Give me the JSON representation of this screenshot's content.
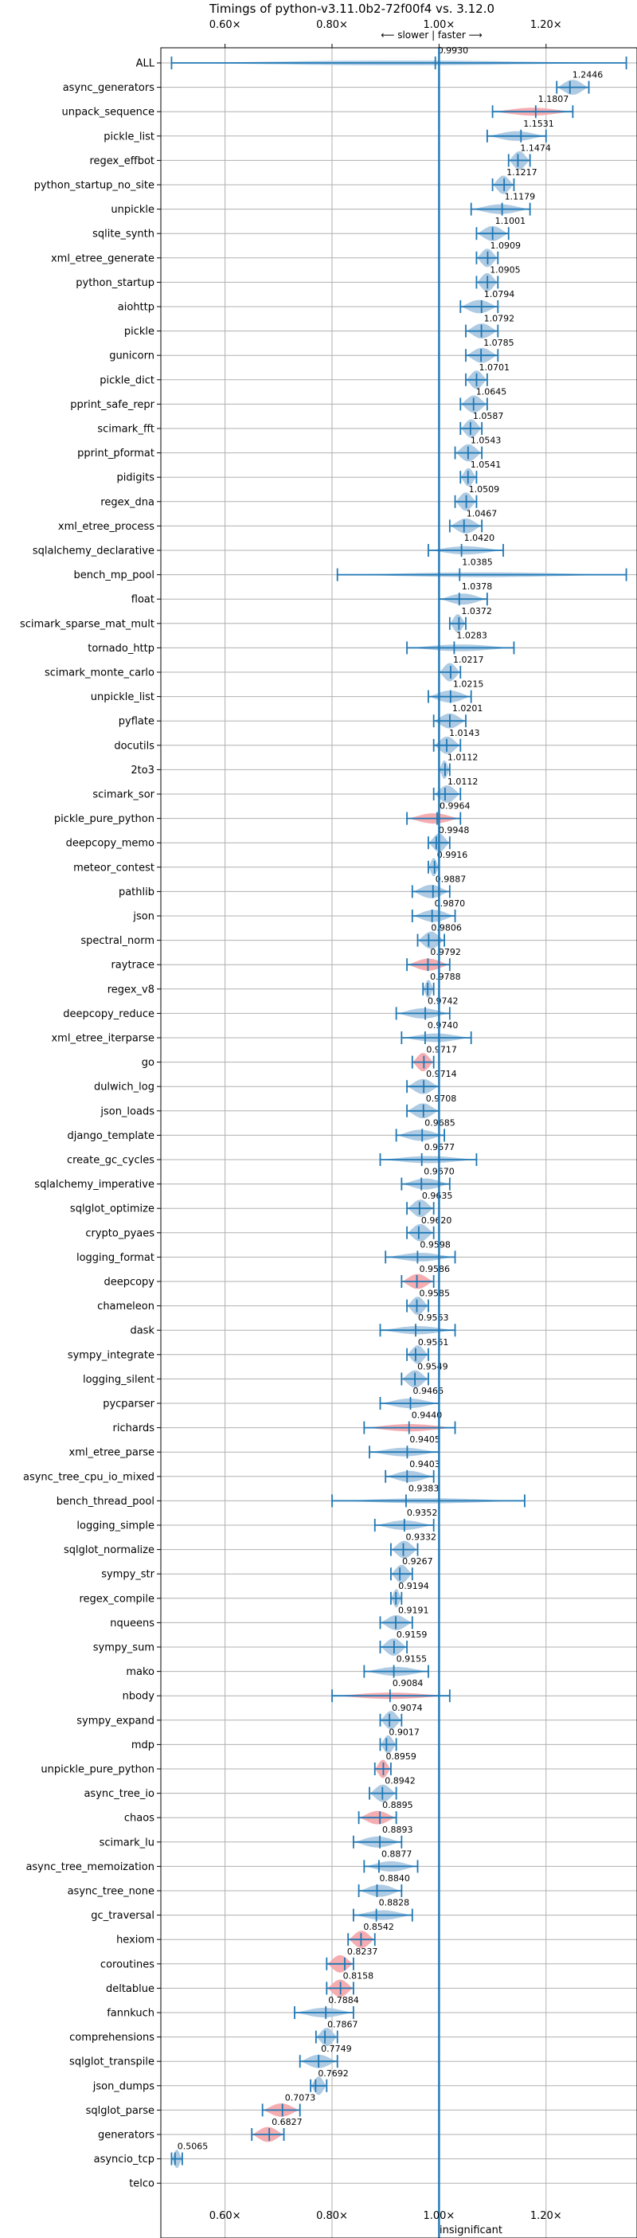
{
  "chart_data": {
    "type": "violin",
    "title": "Timings of python-v3.11.0b2-72f00f4 vs. 3.12.0",
    "direction_label": "⟵ slower | faster ⟶",
    "x_ticks": [
      0.6,
      0.8,
      1.0,
      1.2
    ],
    "x_tick_labels": [
      "0.60×",
      "0.80×",
      "1.00×",
      "1.20×"
    ],
    "xlim": [
      0.48,
      1.37
    ],
    "grid": true,
    "colors": {
      "normal": "#aac8e2",
      "regression": "#f4a9ad",
      "line": "#1f77b4"
    },
    "annotation": "insignificant",
    "benchmarks": [
      {
        "name": "ALL",
        "value": 0.993,
        "low": 0.5,
        "high": 1.35,
        "color": "normal"
      },
      {
        "name": "async_generators",
        "value": 1.2446,
        "low": 1.22,
        "high": 1.28,
        "color": "normal"
      },
      {
        "name": "unpack_sequence",
        "value": 1.1807,
        "low": 1.1,
        "high": 1.25,
        "color": "regression"
      },
      {
        "name": "pickle_list",
        "value": 1.1531,
        "low": 1.09,
        "high": 1.2,
        "color": "normal"
      },
      {
        "name": "regex_effbot",
        "value": 1.1474,
        "low": 1.13,
        "high": 1.17,
        "color": "normal"
      },
      {
        "name": "python_startup_no_site",
        "value": 1.1217,
        "low": 1.1,
        "high": 1.14,
        "color": "normal"
      },
      {
        "name": "unpickle",
        "value": 1.1179,
        "low": 1.06,
        "high": 1.17,
        "color": "normal"
      },
      {
        "name": "sqlite_synth",
        "value": 1.1001,
        "low": 1.07,
        "high": 1.13,
        "color": "normal"
      },
      {
        "name": "xml_etree_generate",
        "value": 1.0909,
        "low": 1.07,
        "high": 1.11,
        "color": "normal"
      },
      {
        "name": "python_startup",
        "value": 1.0905,
        "low": 1.07,
        "high": 1.11,
        "color": "normal"
      },
      {
        "name": "aiohttp",
        "value": 1.0794,
        "low": 1.04,
        "high": 1.11,
        "color": "normal"
      },
      {
        "name": "pickle",
        "value": 1.0792,
        "low": 1.05,
        "high": 1.11,
        "color": "normal"
      },
      {
        "name": "gunicorn",
        "value": 1.0785,
        "low": 1.05,
        "high": 1.11,
        "color": "normal"
      },
      {
        "name": "pickle_dict",
        "value": 1.0701,
        "low": 1.05,
        "high": 1.09,
        "color": "normal"
      },
      {
        "name": "pprint_safe_repr",
        "value": 1.0645,
        "low": 1.04,
        "high": 1.09,
        "color": "normal"
      },
      {
        "name": "scimark_fft",
        "value": 1.0587,
        "low": 1.04,
        "high": 1.08,
        "color": "normal"
      },
      {
        "name": "pprint_pformat",
        "value": 1.0543,
        "low": 1.03,
        "high": 1.08,
        "color": "normal"
      },
      {
        "name": "pidigits",
        "value": 1.0541,
        "low": 1.04,
        "high": 1.07,
        "color": "normal"
      },
      {
        "name": "regex_dna",
        "value": 1.0509,
        "low": 1.03,
        "high": 1.07,
        "color": "normal"
      },
      {
        "name": "xml_etree_process",
        "value": 1.0467,
        "low": 1.02,
        "high": 1.08,
        "color": "normal"
      },
      {
        "name": "sqlalchemy_declarative",
        "value": 1.042,
        "low": 0.98,
        "high": 1.12,
        "color": "normal"
      },
      {
        "name": "bench_mp_pool",
        "value": 1.0385,
        "low": 0.81,
        "high": 1.35,
        "color": "normal"
      },
      {
        "name": "float",
        "value": 1.0378,
        "low": 1.0,
        "high": 1.09,
        "color": "normal"
      },
      {
        "name": "scimark_sparse_mat_mult",
        "value": 1.0372,
        "low": 1.02,
        "high": 1.05,
        "color": "normal"
      },
      {
        "name": "tornado_http",
        "value": 1.0283,
        "low": 0.94,
        "high": 1.14,
        "color": "normal"
      },
      {
        "name": "scimark_monte_carlo",
        "value": 1.0217,
        "low": 1.0,
        "high": 1.04,
        "color": "normal"
      },
      {
        "name": "unpickle_list",
        "value": 1.0215,
        "low": 0.98,
        "high": 1.06,
        "color": "normal"
      },
      {
        "name": "pyflate",
        "value": 1.0201,
        "low": 0.99,
        "high": 1.05,
        "color": "normal"
      },
      {
        "name": "docutils",
        "value": 1.0143,
        "low": 0.99,
        "high": 1.04,
        "color": "normal"
      },
      {
        "name": "2to3",
        "value": 1.0112,
        "low": 1.0,
        "high": 1.02,
        "color": "normal"
      },
      {
        "name": "scimark_sor",
        "value": 1.0112,
        "low": 0.99,
        "high": 1.04,
        "color": "normal"
      },
      {
        "name": "pickle_pure_python",
        "value": 0.9964,
        "low": 0.94,
        "high": 1.04,
        "color": "regression"
      },
      {
        "name": "deepcopy_memo",
        "value": 0.9948,
        "low": 0.98,
        "high": 1.02,
        "color": "normal"
      },
      {
        "name": "meteor_contest",
        "value": 0.9916,
        "low": 0.98,
        "high": 1.0,
        "color": "normal"
      },
      {
        "name": "pathlib",
        "value": 0.9887,
        "low": 0.95,
        "high": 1.02,
        "color": "normal"
      },
      {
        "name": "json",
        "value": 0.987,
        "low": 0.95,
        "high": 1.03,
        "color": "normal"
      },
      {
        "name": "spectral_norm",
        "value": 0.9806,
        "low": 0.96,
        "high": 1.01,
        "color": "normal"
      },
      {
        "name": "raytrace",
        "value": 0.9792,
        "low": 0.94,
        "high": 1.02,
        "color": "regression"
      },
      {
        "name": "regex_v8",
        "value": 0.9788,
        "low": 0.97,
        "high": 0.99,
        "color": "normal"
      },
      {
        "name": "deepcopy_reduce",
        "value": 0.9742,
        "low": 0.92,
        "high": 1.02,
        "color": "normal"
      },
      {
        "name": "xml_etree_iterparse",
        "value": 0.974,
        "low": 0.93,
        "high": 1.06,
        "color": "normal"
      },
      {
        "name": "go",
        "value": 0.9717,
        "low": 0.95,
        "high": 0.99,
        "color": "regression"
      },
      {
        "name": "dulwich_log",
        "value": 0.9714,
        "low": 0.94,
        "high": 1.0,
        "color": "normal"
      },
      {
        "name": "json_loads",
        "value": 0.9708,
        "low": 0.94,
        "high": 1.0,
        "color": "normal"
      },
      {
        "name": "django_template",
        "value": 0.9685,
        "low": 0.92,
        "high": 1.01,
        "color": "normal"
      },
      {
        "name": "create_gc_cycles",
        "value": 0.9677,
        "low": 0.89,
        "high": 1.07,
        "color": "normal"
      },
      {
        "name": "sqlalchemy_imperative",
        "value": 0.967,
        "low": 0.93,
        "high": 1.02,
        "color": "normal"
      },
      {
        "name": "sqlglot_optimize",
        "value": 0.9635,
        "low": 0.94,
        "high": 0.99,
        "color": "normal"
      },
      {
        "name": "crypto_pyaes",
        "value": 0.962,
        "low": 0.94,
        "high": 0.99,
        "color": "normal"
      },
      {
        "name": "logging_format",
        "value": 0.9598,
        "low": 0.9,
        "high": 1.03,
        "color": "normal"
      },
      {
        "name": "deepcopy",
        "value": 0.9586,
        "low": 0.93,
        "high": 0.99,
        "color": "regression"
      },
      {
        "name": "chameleon",
        "value": 0.9585,
        "low": 0.94,
        "high": 0.98,
        "color": "normal"
      },
      {
        "name": "dask",
        "value": 0.9563,
        "low": 0.89,
        "high": 1.03,
        "color": "normal"
      },
      {
        "name": "sympy_integrate",
        "value": 0.9561,
        "low": 0.94,
        "high": 0.98,
        "color": "normal"
      },
      {
        "name": "logging_silent",
        "value": 0.9549,
        "low": 0.93,
        "high": 0.98,
        "color": "normal"
      },
      {
        "name": "pycparser",
        "value": 0.9466,
        "low": 0.89,
        "high": 1.0,
        "color": "normal"
      },
      {
        "name": "richards",
        "value": 0.944,
        "low": 0.86,
        "high": 1.03,
        "color": "regression"
      },
      {
        "name": "xml_etree_parse",
        "value": 0.9405,
        "low": 0.87,
        "high": 1.0,
        "color": "normal"
      },
      {
        "name": "async_tree_cpu_io_mixed",
        "value": 0.9403,
        "low": 0.9,
        "high": 0.99,
        "color": "normal"
      },
      {
        "name": "bench_thread_pool",
        "value": 0.9383,
        "low": 0.8,
        "high": 1.16,
        "color": "normal"
      },
      {
        "name": "logging_simple",
        "value": 0.9352,
        "low": 0.88,
        "high": 0.99,
        "color": "normal"
      },
      {
        "name": "sqlglot_normalize",
        "value": 0.9332,
        "low": 0.91,
        "high": 0.96,
        "color": "normal"
      },
      {
        "name": "sympy_str",
        "value": 0.9267,
        "low": 0.91,
        "high": 0.95,
        "color": "normal"
      },
      {
        "name": "regex_compile",
        "value": 0.9194,
        "low": 0.91,
        "high": 0.93,
        "color": "normal"
      },
      {
        "name": "nqueens",
        "value": 0.9191,
        "low": 0.89,
        "high": 0.95,
        "color": "normal"
      },
      {
        "name": "sympy_sum",
        "value": 0.9159,
        "low": 0.89,
        "high": 0.94,
        "color": "normal"
      },
      {
        "name": "mako",
        "value": 0.9155,
        "low": 0.86,
        "high": 0.98,
        "color": "normal"
      },
      {
        "name": "nbody",
        "value": 0.9084,
        "low": 0.8,
        "high": 1.02,
        "color": "regression"
      },
      {
        "name": "sympy_expand",
        "value": 0.9074,
        "low": 0.89,
        "high": 0.93,
        "color": "normal"
      },
      {
        "name": "mdp",
        "value": 0.9017,
        "low": 0.89,
        "high": 0.92,
        "color": "normal"
      },
      {
        "name": "unpickle_pure_python",
        "value": 0.8959,
        "low": 0.88,
        "high": 0.91,
        "color": "regression"
      },
      {
        "name": "async_tree_io",
        "value": 0.8942,
        "low": 0.87,
        "high": 0.92,
        "color": "normal"
      },
      {
        "name": "chaos",
        "value": 0.8895,
        "low": 0.85,
        "high": 0.92,
        "color": "regression"
      },
      {
        "name": "scimark_lu",
        "value": 0.8893,
        "low": 0.84,
        "high": 0.93,
        "color": "normal"
      },
      {
        "name": "async_tree_memoization",
        "value": 0.8877,
        "low": 0.86,
        "high": 0.96,
        "color": "normal"
      },
      {
        "name": "async_tree_none",
        "value": 0.884,
        "low": 0.85,
        "high": 0.93,
        "color": "normal"
      },
      {
        "name": "gc_traversal",
        "value": 0.8828,
        "low": 0.84,
        "high": 0.95,
        "color": "normal"
      },
      {
        "name": "hexiom",
        "value": 0.8542,
        "low": 0.83,
        "high": 0.88,
        "color": "regression"
      },
      {
        "name": "coroutines",
        "value": 0.8237,
        "low": 0.79,
        "high": 0.84,
        "color": "regression"
      },
      {
        "name": "deltablue",
        "value": 0.8158,
        "low": 0.79,
        "high": 0.84,
        "color": "regression"
      },
      {
        "name": "fannkuch",
        "value": 0.7884,
        "low": 0.73,
        "high": 0.84,
        "color": "normal"
      },
      {
        "name": "comprehensions",
        "value": 0.7867,
        "low": 0.77,
        "high": 0.81,
        "color": "normal"
      },
      {
        "name": "sqlglot_transpile",
        "value": 0.7749,
        "low": 0.74,
        "high": 0.81,
        "color": "normal"
      },
      {
        "name": "json_dumps",
        "value": 0.7692,
        "low": 0.76,
        "high": 0.79,
        "color": "normal"
      },
      {
        "name": "sqlglot_parse",
        "value": 0.7073,
        "low": 0.67,
        "high": 0.74,
        "color": "regression"
      },
      {
        "name": "generators",
        "value": 0.6827,
        "low": 0.65,
        "high": 0.71,
        "color": "regression"
      },
      {
        "name": "asyncio_tcp",
        "value": 0.5065,
        "low": 0.5,
        "high": 0.52,
        "color": "normal"
      },
      {
        "name": "telco",
        "value": null,
        "low": null,
        "high": null,
        "color": "normal",
        "note": "insignificant"
      }
    ]
  }
}
